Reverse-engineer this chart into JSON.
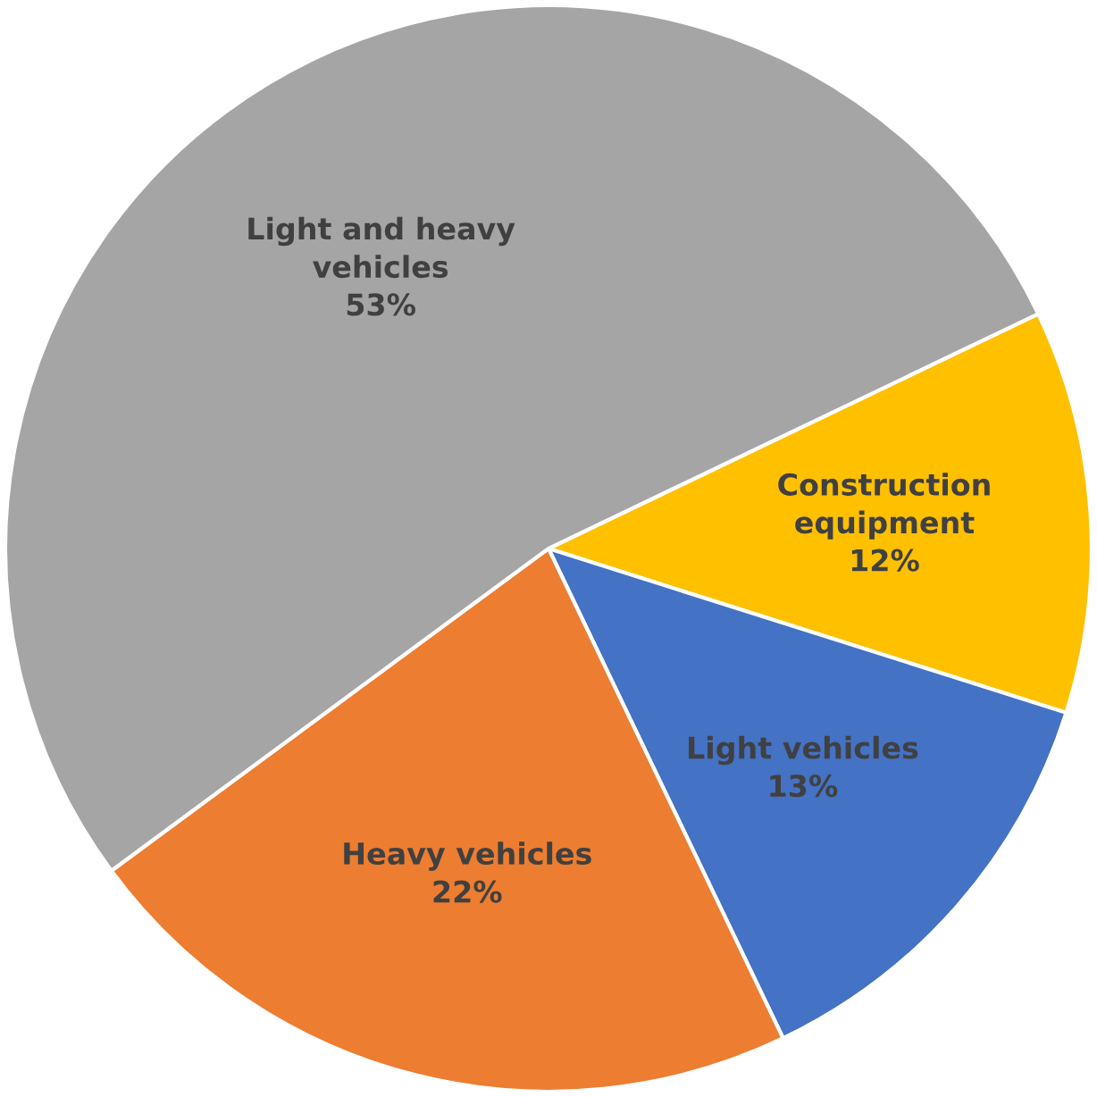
{
  "chart_data": {
    "type": "pie",
    "categories": [
      "Construction\nequipment",
      "Light vehicles",
      "Heavy vehicles",
      "Light and heavy\nvehicles"
    ],
    "values": [
      12,
      13,
      22,
      53
    ],
    "colors": [
      "#ffc000",
      "#4472c4",
      "#ed7d31",
      "#a5a5a5"
    ],
    "value_labels": [
      "12%",
      "13%",
      "22%",
      "53%"
    ]
  }
}
